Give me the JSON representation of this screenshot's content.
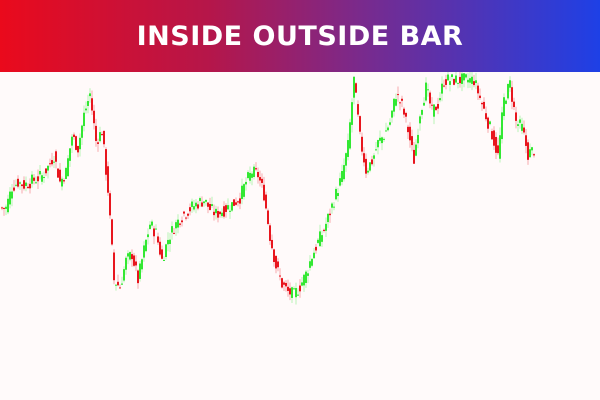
{
  "banner": {
    "title": "INSIDE OUTSIDE BAR"
  },
  "colors": {
    "up": "#33e833",
    "down": "#e8161e",
    "background": "#fffafa",
    "banner_start": "#ea0a1c",
    "banner_end": "#1e40e6"
  },
  "chart_data": {
    "type": "candlestick",
    "title": "INSIDE OUTSIDE BAR",
    "xlabel": "",
    "ylabel": "",
    "axes_visible": false,
    "grid": false,
    "ylim": [
      60,
      330
    ],
    "close": [
      192,
      213,
      218,
      215,
      218,
      221,
      224,
      233,
      245,
      218,
      228,
      264,
      252,
      285,
      306,
      259,
      269,
      210,
      120,
      113,
      139,
      146,
      120,
      150,
      176,
      167,
      140,
      161,
      173,
      182,
      188,
      193,
      197,
      200,
      191,
      186,
      189,
      193,
      197,
      203,
      218,
      228,
      225,
      206,
      164,
      134,
      116,
      108,
      105,
      114,
      126,
      144,
      158,
      170,
      188,
      206,
      224,
      254,
      320,
      262,
      230,
      239,
      257,
      265,
      278,
      306,
      294,
      270,
      240,
      288,
      312,
      288,
      296,
      320,
      320,
      320,
      320,
      320,
      320,
      302,
      284,
      266,
      244,
      300,
      316,
      278,
      272,
      246,
      250
    ]
  }
}
